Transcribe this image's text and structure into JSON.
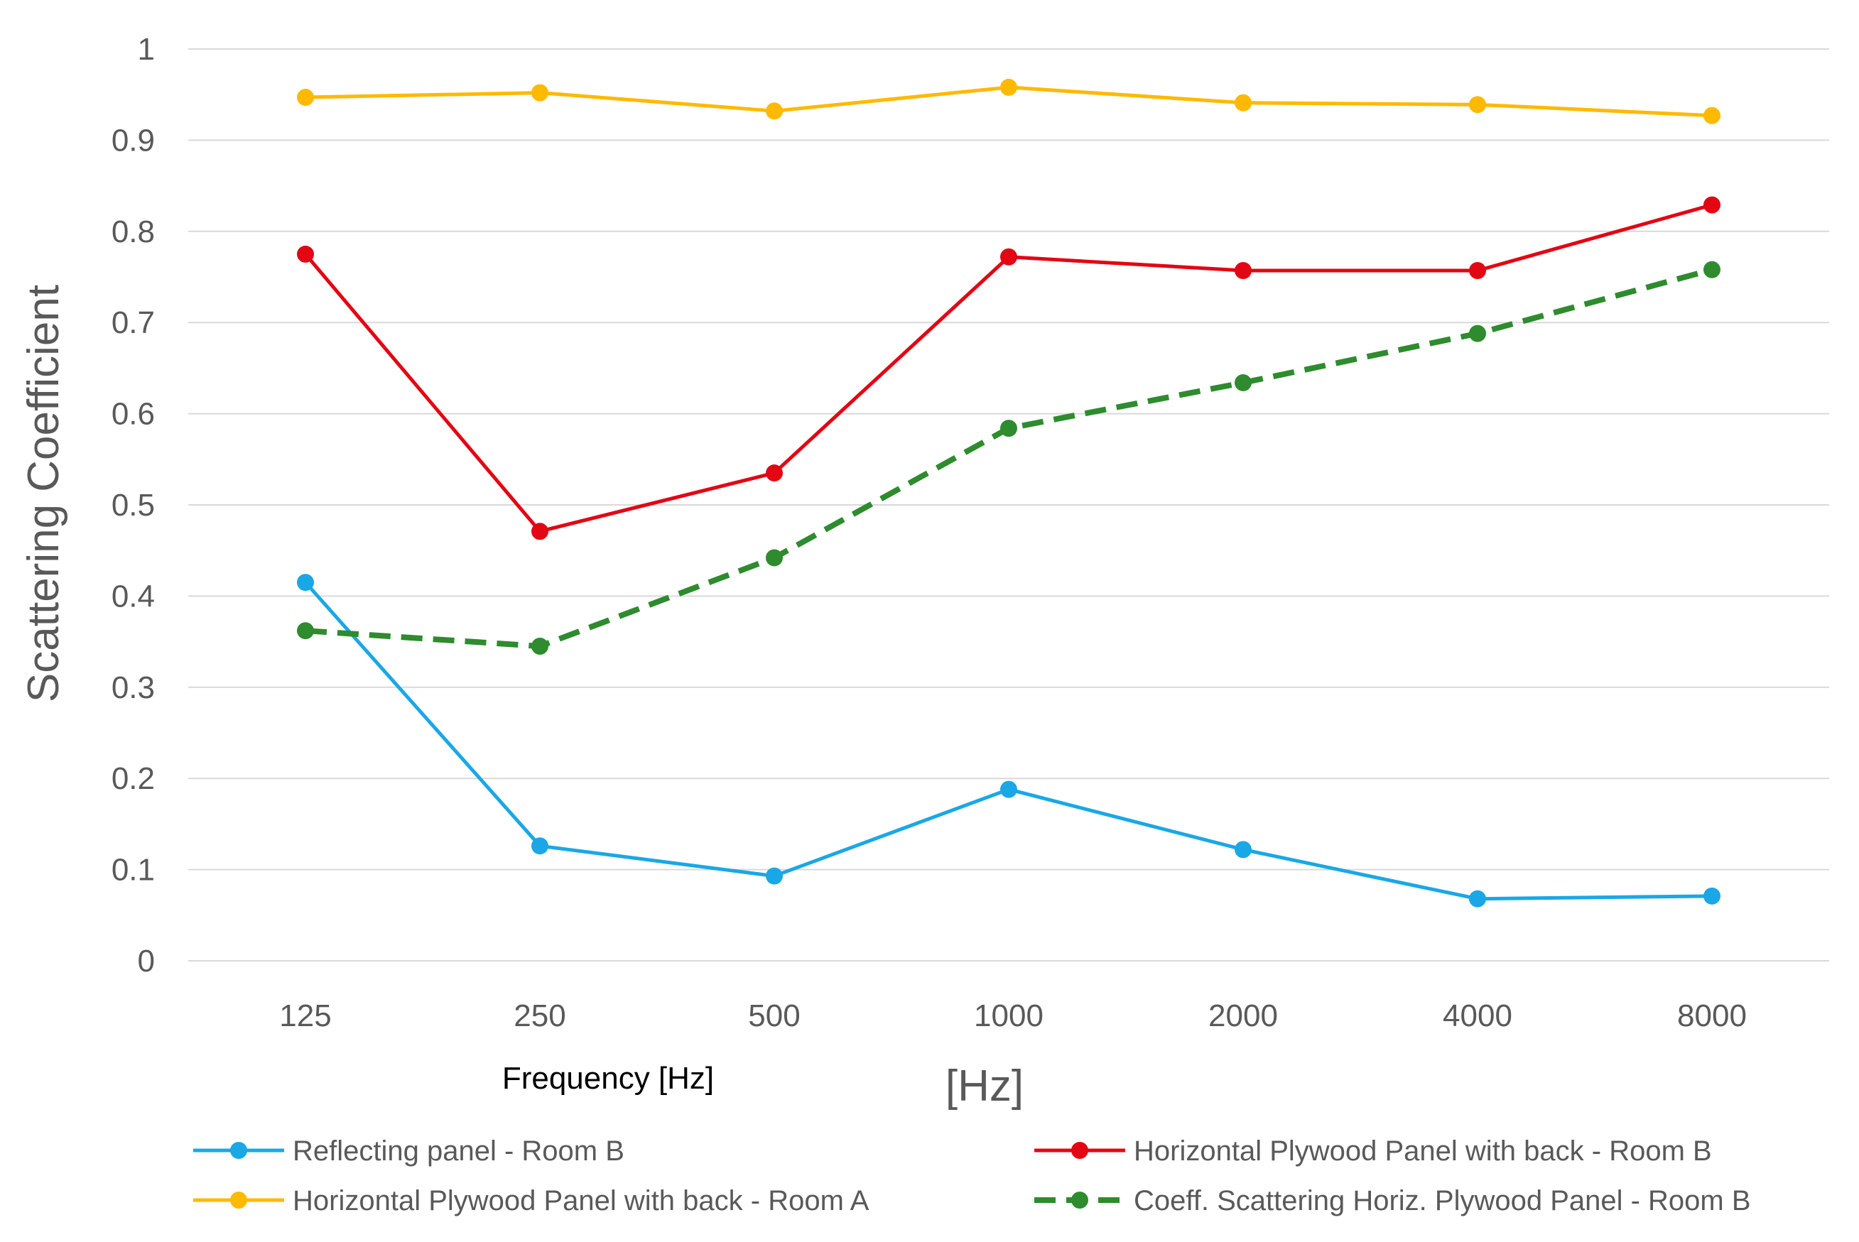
{
  "chart_data": {
    "type": "line",
    "title": "",
    "xlabel": "Frequency [Hz]",
    "xunit": "[Hz]",
    "ylabel": "Scattering  Coefficient",
    "categories": [
      "125",
      "250",
      "500",
      "1000",
      "2000",
      "4000",
      "8000"
    ],
    "yticks": [
      "0",
      "0.1",
      "0.2",
      "0.3",
      "0.4",
      "0.5",
      "0.6",
      "0.7",
      "0.8",
      "0.9",
      "1"
    ],
    "ylim": [
      0,
      1
    ],
    "grid": true,
    "legend_position": "bottom",
    "series": [
      {
        "name": "Reflecting panel - Room B",
        "color": "#1aa7e6",
        "dashed": false,
        "values": [
          0.415,
          0.126,
          0.093,
          0.188,
          0.122,
          0.068,
          0.071
        ]
      },
      {
        "name": "Horizontal Plywood Panel with back - Room B",
        "color": "#e30613",
        "dashed": false,
        "values": [
          0.775,
          0.471,
          0.535,
          0.772,
          0.757,
          0.757,
          0.829
        ]
      },
      {
        "name": "Horizontal Plywood Panel with back - Room A",
        "color": "#ffb900",
        "dashed": false,
        "values": [
          0.947,
          0.952,
          0.932,
          0.958,
          0.941,
          0.939,
          0.927
        ]
      },
      {
        "name": "Coeff. Scattering Horiz. Plywood Panel - Room B",
        "color": "#2e8b2e",
        "dashed": true,
        "values": [
          0.362,
          0.345,
          0.442,
          0.584,
          0.634,
          0.688,
          0.758
        ]
      }
    ]
  }
}
